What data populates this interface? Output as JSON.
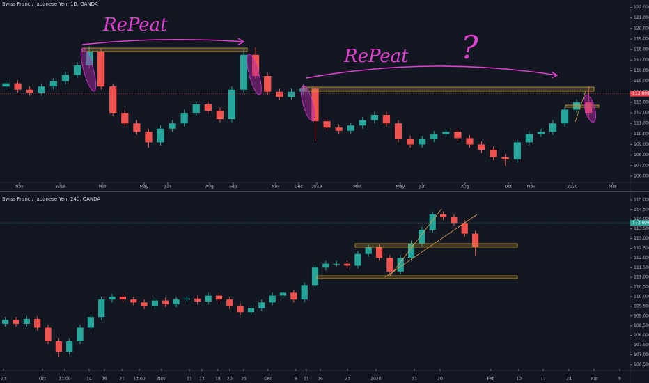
{
  "chart_data": [
    {
      "type": "candlestick",
      "title": "Swiss Franc / Japanese Yen, 1D, OANDA",
      "up_color": "#26a69a",
      "down_color": "#ef5350",
      "open": [
        114.5,
        114.8,
        114.2,
        113.9,
        114.5,
        115.0,
        115.6,
        116.5,
        117.8,
        114.5,
        112.0,
        111.0,
        110.2,
        109.2,
        110.5,
        111.0,
        112.0,
        112.8,
        112.2,
        111.4,
        114.2,
        117.5,
        115.5,
        114.0,
        113.5,
        114.0,
        114.3,
        111.2,
        110.6,
        110.3,
        110.8,
        111.3,
        111.8,
        111.0,
        109.5,
        109.0,
        109.5,
        110.0,
        110.2,
        109.6,
        109.0,
        108.5,
        107.8,
        107.6,
        109.2,
        110.0,
        110.2,
        111.0,
        112.3,
        113.0
      ],
      "high": [
        115.1,
        115.1,
        114.5,
        114.8,
        115.3,
        115.9,
        116.8,
        118.3,
        118.1,
        114.8,
        112.3,
        111.3,
        110.5,
        110.8,
        111.3,
        112.3,
        113.1,
        113.1,
        112.5,
        114.5,
        118.0,
        118.2,
        115.8,
        114.3,
        114.3,
        114.7,
        114.6,
        111.5,
        110.9,
        111.1,
        111.6,
        112.1,
        112.1,
        111.3,
        109.8,
        109.8,
        110.3,
        110.5,
        110.5,
        109.9,
        109.3,
        108.8,
        108.1,
        109.5,
        110.3,
        110.5,
        111.3,
        112.6,
        113.3,
        114.5
      ],
      "low": [
        114.2,
        113.9,
        113.6,
        113.6,
        114.2,
        114.7,
        115.3,
        116.2,
        114.2,
        111.7,
        110.7,
        109.9,
        108.7,
        108.9,
        110.2,
        110.7,
        111.7,
        111.9,
        111.1,
        111.1,
        113.9,
        115.2,
        113.7,
        113.2,
        113.2,
        113.7,
        109.3,
        110.3,
        110.0,
        110.0,
        110.5,
        111.0,
        110.7,
        109.2,
        108.7,
        108.7,
        109.2,
        109.7,
        109.3,
        108.7,
        108.2,
        107.5,
        107.0,
        107.3,
        108.9,
        109.7,
        109.9,
        110.7,
        112.0,
        111.5
      ],
      "close": [
        114.8,
        114.2,
        113.9,
        114.5,
        115.0,
        115.6,
        116.5,
        117.8,
        114.5,
        112.0,
        111.0,
        110.2,
        109.2,
        110.5,
        111.0,
        112.0,
        112.8,
        112.2,
        111.4,
        114.2,
        117.5,
        115.5,
        114.0,
        113.5,
        114.0,
        114.3,
        111.2,
        110.6,
        110.3,
        110.8,
        111.3,
        111.8,
        111.0,
        109.5,
        109.0,
        109.5,
        110.0,
        110.2,
        109.6,
        109.0,
        108.5,
        107.8,
        107.6,
        109.2,
        110.0,
        110.2,
        111.0,
        112.3,
        113.0,
        112.0
      ],
      "xlim": [
        0,
        53
      ],
      "xticks": [
        {
          "value": 1.64,
          "label": "Nov"
        },
        {
          "value": 5.09,
          "label": "2018"
        },
        {
          "value": 8.61,
          "label": "Mar"
        },
        {
          "value": 12.12,
          "label": "May"
        },
        {
          "value": 14.11,
          "label": "Jun"
        },
        {
          "value": 17.62,
          "label": "Aug"
        },
        {
          "value": 19.61,
          "label": "Sep"
        },
        {
          "value": 23.19,
          "label": "Nov"
        },
        {
          "value": 25.12,
          "label": "Dec"
        },
        {
          "value": 26.64,
          "label": "2019"
        },
        {
          "value": 30.04,
          "label": "Mar"
        },
        {
          "value": 33.67,
          "label": "May"
        },
        {
          "value": 35.54,
          "label": "Jun"
        },
        {
          "value": 39.11,
          "label": "Aug"
        },
        {
          "value": 42.74,
          "label": "Oct"
        },
        {
          "value": 44.67,
          "label": "Nov"
        },
        {
          "value": 48.13,
          "label": "2020"
        },
        {
          "value": 51.52,
          "label": "Mar"
        }
      ],
      "ylim": [
        105.4,
        122.7
      ],
      "yticks": [
        {
          "value": 106,
          "label": "106.000"
        },
        {
          "value": 107,
          "label": "107.000"
        },
        {
          "value": 108,
          "label": "108.000"
        },
        {
          "value": 109,
          "label": "109.000"
        },
        {
          "value": 110,
          "label": "110.000"
        },
        {
          "value": 111,
          "label": "111.000"
        },
        {
          "value": 112,
          "label": "112.000"
        },
        {
          "value": 113,
          "label": "113.000"
        },
        {
          "value": 114,
          "label": "114.000"
        },
        {
          "value": 115,
          "label": "115.000"
        },
        {
          "value": 116,
          "label": "116.000"
        },
        {
          "value": 117,
          "label": "117.000"
        },
        {
          "value": 118,
          "label": "118.000"
        },
        {
          "value": 119,
          "label": "119.000"
        },
        {
          "value": 120,
          "label": "120.000"
        },
        {
          "value": 121,
          "label": "121.000"
        },
        {
          "value": 122,
          "label": "122.000"
        }
      ],
      "last_price": 113.809,
      "last_price_color": "#f23645",
      "annotations": [
        "RePeat",
        "RePeat",
        "?"
      ]
    },
    {
      "type": "candlestick",
      "title": "Swiss Franc / Japanese Yen, 240, OANDA",
      "up_color": "#26a69a",
      "down_color": "#ef5350",
      "open": [
        108.6,
        108.8,
        108.6,
        108.85,
        108.4,
        107.7,
        107.15,
        107.7,
        108.4,
        108.95,
        109.85,
        110.0,
        109.85,
        109.7,
        109.5,
        109.8,
        109.6,
        109.85,
        109.9,
        109.75,
        110.05,
        109.85,
        109.5,
        109.2,
        109.4,
        109.7,
        110.05,
        110.2,
        109.85,
        110.6,
        111.5,
        111.7,
        111.7,
        111.6,
        112.2,
        112.55,
        112.0,
        111.3,
        112.0,
        112.75,
        113.45,
        114.25,
        114.1,
        113.8,
        113.25
      ],
      "high": [
        108.95,
        108.95,
        109.0,
        109.0,
        108.55,
        107.85,
        107.85,
        108.55,
        109.1,
        110.0,
        110.15,
        110.15,
        110.0,
        109.85,
        109.95,
        109.95,
        110.0,
        110.05,
        110.05,
        110.2,
        110.2,
        110.0,
        109.65,
        109.55,
        109.85,
        110.2,
        110.35,
        110.35,
        110.75,
        111.65,
        111.85,
        111.85,
        111.85,
        112.35,
        112.7,
        112.7,
        112.15,
        112.15,
        112.9,
        113.6,
        114.4,
        114.4,
        114.25,
        113.95,
        113.4
      ],
      "low": [
        108.45,
        108.45,
        108.45,
        108.25,
        107.55,
        106.9,
        107.0,
        107.55,
        108.25,
        108.8,
        109.7,
        109.7,
        109.55,
        109.35,
        109.35,
        109.45,
        109.45,
        109.7,
        109.6,
        109.6,
        109.7,
        109.35,
        109.05,
        109.05,
        109.25,
        109.55,
        109.9,
        109.7,
        109.7,
        110.45,
        111.35,
        111.55,
        111.45,
        111.45,
        112.05,
        111.85,
        111.1,
        111.15,
        111.85,
        112.6,
        113.3,
        113.95,
        113.65,
        113.1,
        112.1
      ],
      "close": [
        108.8,
        108.6,
        108.85,
        108.4,
        107.7,
        107.15,
        107.7,
        108.4,
        108.95,
        109.85,
        110.0,
        109.85,
        109.7,
        109.5,
        109.8,
        109.6,
        109.85,
        109.9,
        109.75,
        110.05,
        109.85,
        109.5,
        109.2,
        109.4,
        109.7,
        110.05,
        110.2,
        109.85,
        110.6,
        111.5,
        111.7,
        111.7,
        111.6,
        112.2,
        112.55,
        112.0,
        111.3,
        112.0,
        112.75,
        113.45,
        114.25,
        114.1,
        113.8,
        113.25,
        112.55
      ],
      "xlim": [
        0,
        59
      ],
      "xticks": [
        {
          "value": 0.33,
          "label": "23"
        },
        {
          "value": 3.98,
          "label": "Oct"
        },
        {
          "value": 6.06,
          "label": "13:00"
        },
        {
          "value": 8.34,
          "label": "14"
        },
        {
          "value": 9.78,
          "label": "16"
        },
        {
          "value": 11.41,
          "label": "21"
        },
        {
          "value": 13.04,
          "label": "13:00"
        },
        {
          "value": 15.12,
          "label": "Nov"
        },
        {
          "value": 17.73,
          "label": "11"
        },
        {
          "value": 18.9,
          "label": "13"
        },
        {
          "value": 20.4,
          "label": "18"
        },
        {
          "value": 21.51,
          "label": "20"
        },
        {
          "value": 22.82,
          "label": "25"
        },
        {
          "value": 25.1,
          "label": "Dec"
        },
        {
          "value": 27.71,
          "label": "9"
        },
        {
          "value": 28.68,
          "label": "11"
        },
        {
          "value": 29.99,
          "label": "16"
        },
        {
          "value": 32.53,
          "label": "23"
        },
        {
          "value": 35.2,
          "label": "2020"
        },
        {
          "value": 38.79,
          "label": "13"
        },
        {
          "value": 41.2,
          "label": "20"
        },
        {
          "value": 45.96,
          "label": "Feb"
        },
        {
          "value": 48.57,
          "label": "10"
        },
        {
          "value": 50.85,
          "label": "17"
        },
        {
          "value": 53.26,
          "label": "24"
        },
        {
          "value": 55.61,
          "label": "Mar"
        },
        {
          "value": 58.02,
          "label": "9"
        }
      ],
      "ylim": [
        106.26,
        115.32
      ],
      "yticks": [
        {
          "value": 106.5,
          "label": "106.500"
        },
        {
          "value": 107,
          "label": "107.000"
        },
        {
          "value": 107.5,
          "label": "107.500"
        },
        {
          "value": 108,
          "label": "108.000"
        },
        {
          "value": 108.5,
          "label": "108.500"
        },
        {
          "value": 109,
          "label": "109.000"
        },
        {
          "value": 109.5,
          "label": "109.500"
        },
        {
          "value": 110,
          "label": "110.000"
        },
        {
          "value": 110.5,
          "label": "110.500"
        },
        {
          "value": 111,
          "label": "111.000"
        },
        {
          "value": 111.5,
          "label": "111.500"
        },
        {
          "value": 112,
          "label": "112.000"
        },
        {
          "value": 112.5,
          "label": "112.500"
        },
        {
          "value": 113,
          "label": "113.000"
        },
        {
          "value": 113.5,
          "label": "113.500"
        },
        {
          "value": 114,
          "label": "114.000"
        },
        {
          "value": 114.5,
          "label": "114.500"
        },
        {
          "value": 115,
          "label": "115.000"
        }
      ],
      "last_price": 113.809,
      "last_price_color": "#26a69a"
    }
  ]
}
